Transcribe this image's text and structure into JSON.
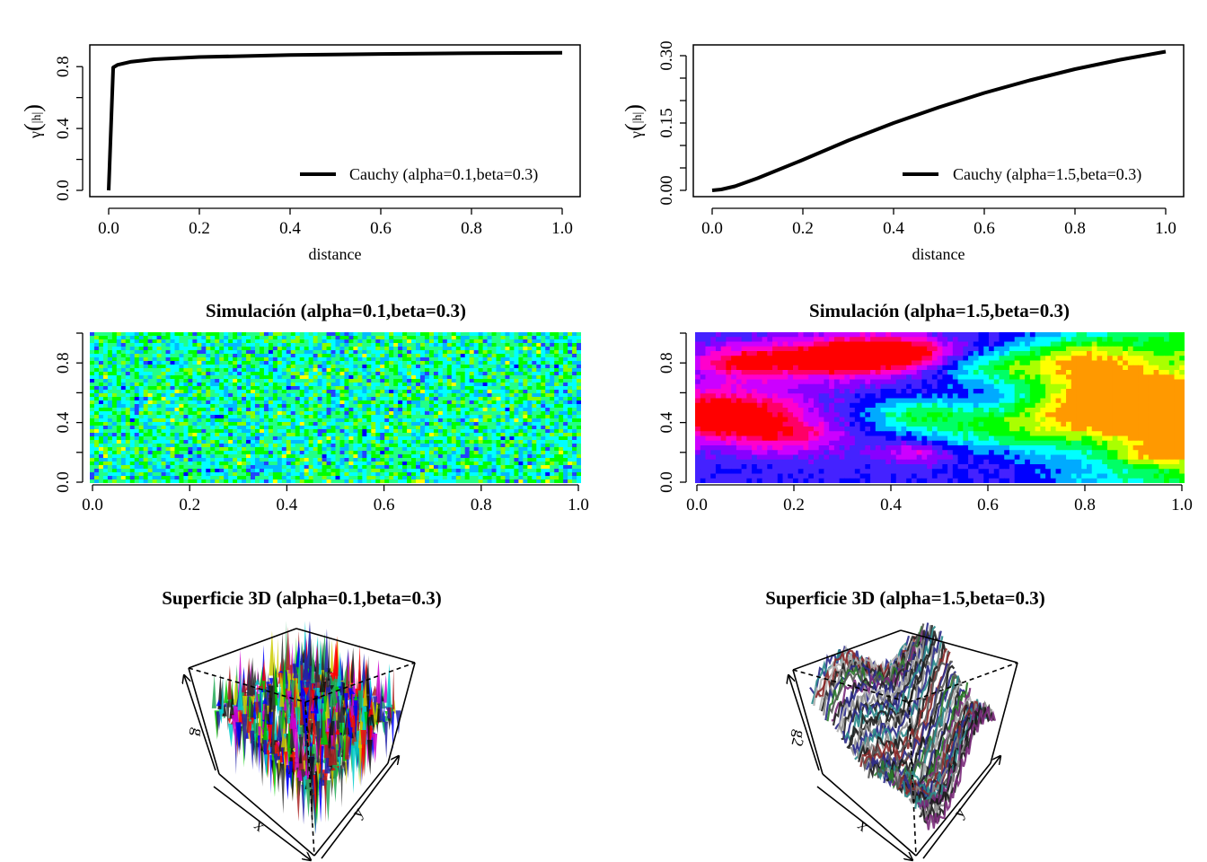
{
  "chart_data": [
    {
      "type": "line",
      "model": "cauchy",
      "alpha": 0.1,
      "beta": 0.3,
      "xlabel": "distance",
      "ylabel_symbol": "γ",
      "ylabel_arg": "|h|",
      "xlim": [
        0,
        1
      ],
      "ylim": [
        0,
        0.9
      ],
      "xticks": [
        "0.0",
        "0.2",
        "0.4",
        "0.6",
        "0.8",
        "1.0"
      ],
      "yticks": [
        "0.0",
        "0.4",
        "0.8"
      ],
      "ytick_values": [
        0,
        0.4,
        0.8
      ],
      "legend": "Cauchy (alpha=0.1,beta=0.3)",
      "legend_position": "bottom-right",
      "series": [
        {
          "name": "Cauchy (alpha=0.1,beta=0.3)",
          "x": [
            0,
            0.01,
            0.02,
            0.05,
            0.1,
            0.2,
            0.4,
            0.6,
            0.8,
            1.0
          ],
          "y": [
            0,
            0.795,
            0.812,
            0.832,
            0.848,
            0.862,
            0.875,
            0.882,
            0.887,
            0.89
          ]
        }
      ]
    },
    {
      "type": "line",
      "model": "cauchy",
      "alpha": 1.5,
      "beta": 0.3,
      "xlabel": "distance",
      "ylabel_symbol": "γ",
      "ylabel_arg": "|h|",
      "xlim": [
        0,
        1
      ],
      "ylim": [
        0,
        0.31
      ],
      "xticks": [
        "0.0",
        "0.2",
        "0.4",
        "0.6",
        "0.8",
        "1.0"
      ],
      "yticks": [
        "0.00",
        "0.15",
        "0.30"
      ],
      "ytick_values": [
        0,
        0.15,
        0.3
      ],
      "legend": "Cauchy (alpha=1.5,beta=0.3)",
      "legend_position": "bottom-right",
      "series": [
        {
          "name": "Cauchy (alpha=1.5,beta=0.3)",
          "x": [
            0,
            0.02,
            0.05,
            0.1,
            0.2,
            0.3,
            0.4,
            0.5,
            0.6,
            0.7,
            0.8,
            0.9,
            1.0
          ],
          "y": [
            0,
            0.002,
            0.009,
            0.027,
            0.068,
            0.111,
            0.15,
            0.185,
            0.217,
            0.245,
            0.27,
            0.291,
            0.309
          ]
        }
      ]
    },
    {
      "type": "heatmap",
      "title": "Simulación (alpha=0.1,beta=0.3)",
      "xlim": [
        0,
        1
      ],
      "ylim": [
        0,
        1
      ],
      "xticks": [
        "0.0",
        "0.2",
        "0.4",
        "0.6",
        "0.8",
        "1.0"
      ],
      "yticks": [
        "0.0",
        "0.4",
        "0.8"
      ],
      "palette": [
        "#0000ff",
        "#2244ff",
        "#00bbff",
        "#00ffff",
        "#22ff88",
        "#00ff00",
        "#88ff00",
        "#ffff00"
      ]
    },
    {
      "type": "heatmap",
      "title": "Simulación (alpha=1.5,beta=0.3)",
      "xlim": [
        0,
        1
      ],
      "ylim": [
        0,
        1
      ],
      "xticks": [
        "0.0",
        "0.2",
        "0.4",
        "0.6",
        "0.8",
        "1.0"
      ],
      "yticks": [
        "0.0",
        "0.4",
        "0.8"
      ],
      "palette": [
        "#ff0000",
        "#ff0066",
        "#ff00cc",
        "#cc00ff",
        "#8800ff",
        "#4422ff",
        "#0000ff",
        "#00aaff",
        "#00ffff",
        "#00ff66",
        "#00ff00",
        "#aaff00",
        "#ffff00",
        "#ff9900"
      ]
    },
    {
      "type": "surface",
      "title": "Superficie 3D (alpha=0.1,beta=0.3)",
      "axis_labels": {
        "x": "x",
        "y": "y",
        "z": "g"
      }
    },
    {
      "type": "surface",
      "title": "Superficie 3D (alpha=1.5,beta=0.3)",
      "axis_labels": {
        "x": "x",
        "y": "y",
        "z": "g2"
      }
    }
  ]
}
